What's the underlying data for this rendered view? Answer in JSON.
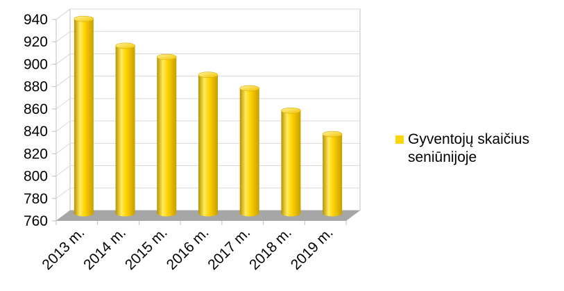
{
  "chart_data": {
    "type": "bar",
    "title": "",
    "xlabel": "",
    "ylabel": "",
    "categories": [
      "2013 m.",
      "2014 m.",
      "2015 m.",
      "2016 m.",
      "2017 m.",
      "2018 m.",
      "2019 m."
    ],
    "series": [
      {
        "name": "Gyventojų skaičius seniūnijoje",
        "values": [
          934,
          910,
          900,
          884,
          872,
          852,
          831
        ]
      }
    ],
    "ylim": [
      760,
      940
    ],
    "yticks": [
      "760",
      "780",
      "800",
      "820",
      "840",
      "860",
      "880",
      "900",
      "920",
      "940"
    ],
    "grid": true,
    "legend_position": "right",
    "bar_style": "3d-cylinder",
    "colors": {
      "bar": "#FFD700",
      "bar_dark": "#C9A100",
      "floor": "#A6A6A6",
      "grid": "#D9D9D9",
      "axis": "#BFBFBF"
    }
  }
}
